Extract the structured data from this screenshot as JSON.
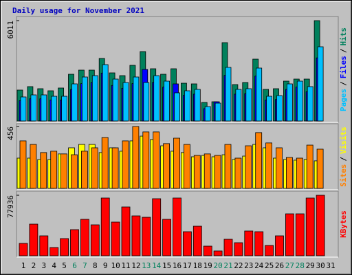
{
  "legend_separator": "/",
  "chart_data": [
    {
      "type": "bar",
      "title": "Daily usage for November 2021",
      "ylim": [
        0,
        6011
      ],
      "yticks": [
        6011
      ],
      "series": [
        {
          "name": "Hits",
          "color": "#00805c",
          "values": [
            1853,
            2059,
            1935,
            1811,
            1976,
            2800,
            3047,
            3047,
            3747,
            2882,
            2717,
            3335,
            4158,
            3129,
            2800,
            3129,
            2264,
            2223,
            1112,
            1153,
            4693,
            2182,
            2306,
            3705,
            1894,
            1935,
            2388,
            2511,
            2511,
            6011,
            null
          ]
        },
        {
          "name": "Files",
          "color": "#0000ff",
          "values": [
            1220,
            1330,
            1330,
            1260,
            1260,
            1890,
            2240,
            2310,
            2870,
            2130,
            1960,
            2240,
            3088,
            2310,
            2030,
            2223,
            1540,
            1610,
            740,
            1153,
            2730,
            1610,
            1640,
            2690,
            1260,
            1290,
            1890,
            2030,
            1750,
            3780,
            null
          ]
        },
        {
          "name": "Pages",
          "color": "#00c0ff",
          "values": [
            1441,
            1564,
            1564,
            1482,
            1482,
            2223,
            2635,
            2717,
            3376,
            2511,
            2306,
            2635,
            2306,
            2717,
            2388,
            1688,
            1811,
            1894,
            865,
            1070,
            3211,
            1894,
            1935,
            3170,
            1482,
            1523,
            2223,
            2388,
            2059,
            4446,
            null
          ]
        }
      ]
    },
    {
      "type": "bar",
      "ylim": [
        0,
        456
      ],
      "yticks": [
        456
      ],
      "series": [
        {
          "name": "Visits",
          "color": "#ffff00",
          "values": [
            223,
            223,
            213,
            213,
            254,
            299,
            324,
            324,
            264,
            299,
            274,
            350,
            385,
            360,
            314,
            274,
            264,
            233,
            243,
            233,
            248,
            213,
            238,
            324,
            299,
            223,
            213,
            208,
            213,
            203,
            null
          ]
        },
        {
          "name": "Sites",
          "color": "#ff8000",
          "values": [
            350,
            324,
            264,
            274,
            254,
            248,
            274,
            299,
            375,
            299,
            350,
            456,
            416,
            416,
            330,
            370,
            324,
            243,
            254,
            243,
            324,
            223,
            314,
            411,
            335,
            299,
            228,
            223,
            319,
            289,
            null
          ]
        }
      ]
    },
    {
      "type": "bar",
      "ylim": [
        0,
        77936
      ],
      "yticks": [
        77936
      ],
      "categories": [
        "1",
        "2",
        "3",
        "4",
        "5",
        "6",
        "7",
        "8",
        "9",
        "10",
        "11",
        "12",
        "13",
        "14",
        "15",
        "16",
        "17",
        "18",
        "19",
        "20",
        "21",
        "22",
        "23",
        "24",
        "25",
        "26",
        "27",
        "28",
        "29",
        "30",
        "31"
      ],
      "category_colors": [
        "#000000",
        "#000000",
        "#000000",
        "#000000",
        "#000000",
        "#00805c",
        "#00805c",
        "#000000",
        "#000000",
        "#000000",
        "#000000",
        "#000000",
        "#00805c",
        "#00805c",
        "#000000",
        "#000000",
        "#000000",
        "#000000",
        "#000000",
        "#00805c",
        "#00805c",
        "#000000",
        "#000000",
        "#000000",
        "#000000",
        "#000000",
        "#00805c",
        "#00805c",
        "#000000",
        "#000000",
        "#000000"
      ],
      "series": [
        {
          "name": "KBytes",
          "color": "#ff0000",
          "values": [
            15941,
            40738,
            25682,
            10627,
            22140,
            33653,
            46937,
            39852,
            74390,
            43394,
            62878,
            51365,
            49594,
            73505,
            46937,
            74390,
            30996,
            38081,
            12398,
            6199,
            21254,
            16826,
            31882,
            30996,
            13284,
            25682,
            54022,
            54022,
            74390,
            77936,
            null
          ]
        }
      ]
    }
  ]
}
